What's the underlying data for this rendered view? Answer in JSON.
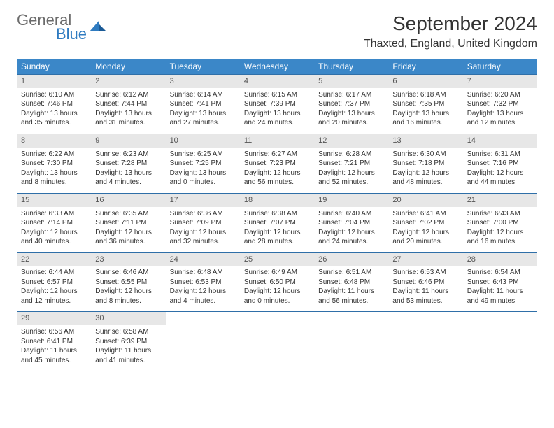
{
  "brand": {
    "top": "General",
    "bottom": "Blue"
  },
  "colors": {
    "header_bg": "#3b87c8",
    "header_text": "#ffffff",
    "daynum_bg": "#e7e7e7",
    "border": "#2f6fa8",
    "logo_blue": "#2f7bc0",
    "logo_gray": "#6b6b6b"
  },
  "title": "September 2024",
  "location": "Thaxted, England, United Kingdom",
  "weekdays": [
    "Sunday",
    "Monday",
    "Tuesday",
    "Wednesday",
    "Thursday",
    "Friday",
    "Saturday"
  ],
  "weeks": [
    [
      {
        "n": "1",
        "sr": "6:10 AM",
        "ss": "7:46 PM",
        "dl": "13 hours and 35 minutes."
      },
      {
        "n": "2",
        "sr": "6:12 AM",
        "ss": "7:44 PM",
        "dl": "13 hours and 31 minutes."
      },
      {
        "n": "3",
        "sr": "6:14 AM",
        "ss": "7:41 PM",
        "dl": "13 hours and 27 minutes."
      },
      {
        "n": "4",
        "sr": "6:15 AM",
        "ss": "7:39 PM",
        "dl": "13 hours and 24 minutes."
      },
      {
        "n": "5",
        "sr": "6:17 AM",
        "ss": "7:37 PM",
        "dl": "13 hours and 20 minutes."
      },
      {
        "n": "6",
        "sr": "6:18 AM",
        "ss": "7:35 PM",
        "dl": "13 hours and 16 minutes."
      },
      {
        "n": "7",
        "sr": "6:20 AM",
        "ss": "7:32 PM",
        "dl": "13 hours and 12 minutes."
      }
    ],
    [
      {
        "n": "8",
        "sr": "6:22 AM",
        "ss": "7:30 PM",
        "dl": "13 hours and 8 minutes."
      },
      {
        "n": "9",
        "sr": "6:23 AM",
        "ss": "7:28 PM",
        "dl": "13 hours and 4 minutes."
      },
      {
        "n": "10",
        "sr": "6:25 AM",
        "ss": "7:25 PM",
        "dl": "13 hours and 0 minutes."
      },
      {
        "n": "11",
        "sr": "6:27 AM",
        "ss": "7:23 PM",
        "dl": "12 hours and 56 minutes."
      },
      {
        "n": "12",
        "sr": "6:28 AM",
        "ss": "7:21 PM",
        "dl": "12 hours and 52 minutes."
      },
      {
        "n": "13",
        "sr": "6:30 AM",
        "ss": "7:18 PM",
        "dl": "12 hours and 48 minutes."
      },
      {
        "n": "14",
        "sr": "6:31 AM",
        "ss": "7:16 PM",
        "dl": "12 hours and 44 minutes."
      }
    ],
    [
      {
        "n": "15",
        "sr": "6:33 AM",
        "ss": "7:14 PM",
        "dl": "12 hours and 40 minutes."
      },
      {
        "n": "16",
        "sr": "6:35 AM",
        "ss": "7:11 PM",
        "dl": "12 hours and 36 minutes."
      },
      {
        "n": "17",
        "sr": "6:36 AM",
        "ss": "7:09 PM",
        "dl": "12 hours and 32 minutes."
      },
      {
        "n": "18",
        "sr": "6:38 AM",
        "ss": "7:07 PM",
        "dl": "12 hours and 28 minutes."
      },
      {
        "n": "19",
        "sr": "6:40 AM",
        "ss": "7:04 PM",
        "dl": "12 hours and 24 minutes."
      },
      {
        "n": "20",
        "sr": "6:41 AM",
        "ss": "7:02 PM",
        "dl": "12 hours and 20 minutes."
      },
      {
        "n": "21",
        "sr": "6:43 AM",
        "ss": "7:00 PM",
        "dl": "12 hours and 16 minutes."
      }
    ],
    [
      {
        "n": "22",
        "sr": "6:44 AM",
        "ss": "6:57 PM",
        "dl": "12 hours and 12 minutes."
      },
      {
        "n": "23",
        "sr": "6:46 AM",
        "ss": "6:55 PM",
        "dl": "12 hours and 8 minutes."
      },
      {
        "n": "24",
        "sr": "6:48 AM",
        "ss": "6:53 PM",
        "dl": "12 hours and 4 minutes."
      },
      {
        "n": "25",
        "sr": "6:49 AM",
        "ss": "6:50 PM",
        "dl": "12 hours and 0 minutes."
      },
      {
        "n": "26",
        "sr": "6:51 AM",
        "ss": "6:48 PM",
        "dl": "11 hours and 56 minutes."
      },
      {
        "n": "27",
        "sr": "6:53 AM",
        "ss": "6:46 PM",
        "dl": "11 hours and 53 minutes."
      },
      {
        "n": "28",
        "sr": "6:54 AM",
        "ss": "6:43 PM",
        "dl": "11 hours and 49 minutes."
      }
    ],
    [
      {
        "n": "29",
        "sr": "6:56 AM",
        "ss": "6:41 PM",
        "dl": "11 hours and 45 minutes."
      },
      {
        "n": "30",
        "sr": "6:58 AM",
        "ss": "6:39 PM",
        "dl": "11 hours and 41 minutes."
      },
      null,
      null,
      null,
      null,
      null
    ]
  ],
  "labels": {
    "sunrise": "Sunrise:",
    "sunset": "Sunset:",
    "daylight": "Daylight:"
  }
}
